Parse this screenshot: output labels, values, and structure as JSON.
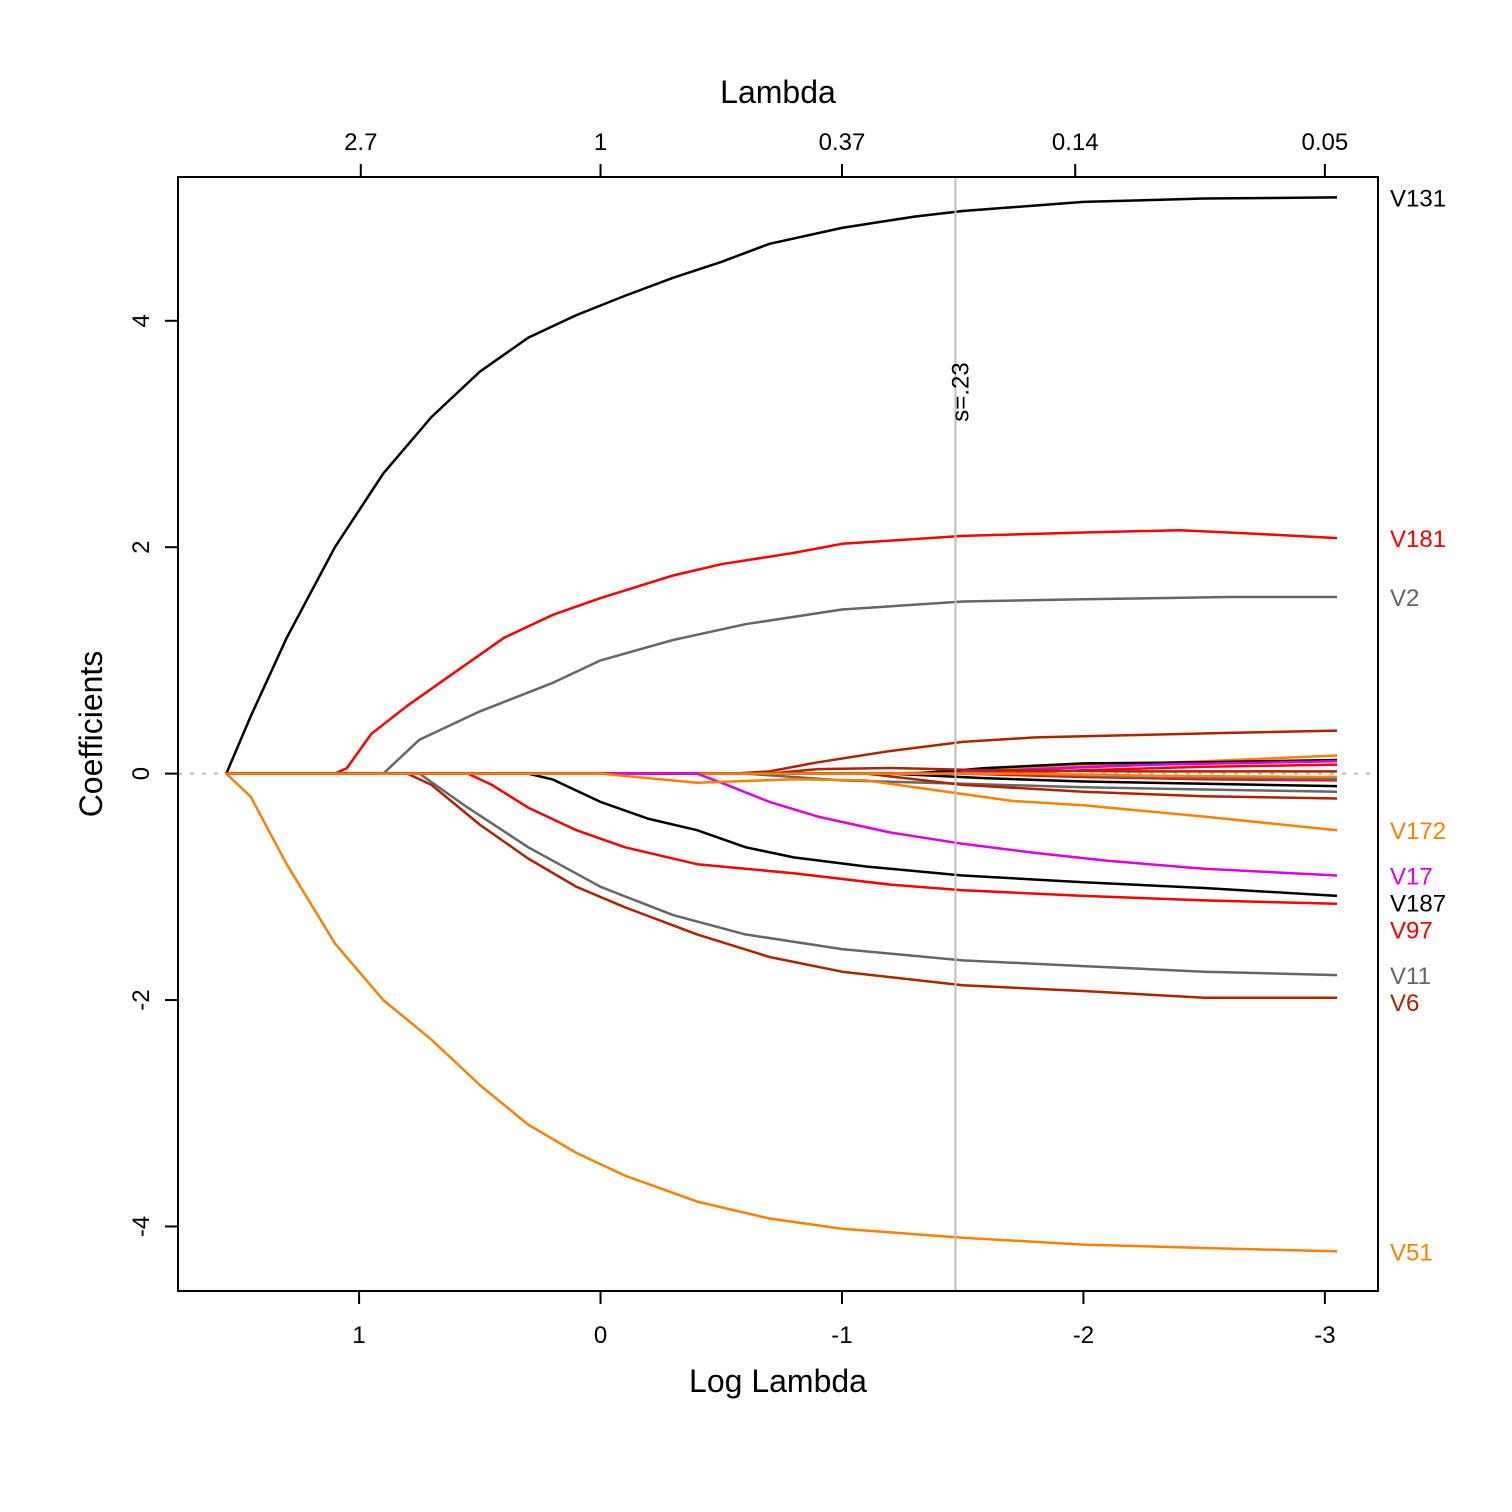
{
  "chart_data": {
    "type": "line",
    "xlabel": "Log Lambda",
    "ylabel": "Coefficients",
    "top_axis_label": "Lambda",
    "xlim": [
      1.75,
      -3.22
    ],
    "ylim": [
      -4.57,
      5.27
    ],
    "x_ticks": [
      1,
      0,
      -1,
      -2,
      -3
    ],
    "x_tick_labels": [
      "1",
      "0",
      "-1",
      "-2",
      "-3"
    ],
    "y_ticks": [
      -4,
      -2,
      0,
      2,
      4
    ],
    "y_tick_labels": [
      "-4",
      "-2",
      "0",
      "2",
      "4"
    ],
    "top_ticks": [
      0.993,
      0.0,
      -1.0,
      -1.966,
      -3.0
    ],
    "top_tick_labels": [
      "2.7",
      "1",
      "0.37",
      "0.14",
      "0.05"
    ],
    "reference_line": {
      "log_lambda": -1.47,
      "label": "s=.23"
    },
    "zero_line": true,
    "grid": false,
    "legend": "labels at right edge",
    "colors": {
      "black": "#000000",
      "red": "#ff0000",
      "gray": "#666666",
      "orange": "#ff7f00",
      "magenta": "#e000e0",
      "darkred": "#b22200",
      "refline": "#bebebe",
      "zero": "#bebebe"
    },
    "series": [
      {
        "name": "V131",
        "color": "#000000",
        "labeled": true,
        "points": [
          [
            1.55,
            0
          ],
          [
            1.45,
            0.5
          ],
          [
            1.3,
            1.2
          ],
          [
            1.1,
            2.0
          ],
          [
            0.9,
            2.65
          ],
          [
            0.7,
            3.15
          ],
          [
            0.5,
            3.55
          ],
          [
            0.3,
            3.85
          ],
          [
            0.1,
            4.05
          ],
          [
            -0.1,
            4.22
          ],
          [
            -0.3,
            4.38
          ],
          [
            -0.5,
            4.52
          ],
          [
            -0.7,
            4.68
          ],
          [
            -1.0,
            4.82
          ],
          [
            -1.3,
            4.92
          ],
          [
            -1.5,
            4.97
          ],
          [
            -2.0,
            5.05
          ],
          [
            -2.5,
            5.08
          ],
          [
            -3.05,
            5.09
          ]
        ]
      },
      {
        "name": "V181",
        "color": "#ff0000",
        "labeled": true,
        "points": [
          [
            1.1,
            0
          ],
          [
            1.05,
            0.05
          ],
          [
            0.95,
            0.35
          ],
          [
            0.8,
            0.6
          ],
          [
            0.6,
            0.9
          ],
          [
            0.4,
            1.2
          ],
          [
            0.2,
            1.4
          ],
          [
            0.0,
            1.55
          ],
          [
            -0.3,
            1.75
          ],
          [
            -0.5,
            1.85
          ],
          [
            -0.8,
            1.95
          ],
          [
            -1.0,
            2.03
          ],
          [
            -1.5,
            2.1
          ],
          [
            -2.0,
            2.13
          ],
          [
            -2.4,
            2.15
          ],
          [
            -2.7,
            2.12
          ],
          [
            -3.05,
            2.08
          ]
        ]
      },
      {
        "name": "V2",
        "color": "#666666",
        "labeled": true,
        "points": [
          [
            0.9,
            0
          ],
          [
            0.75,
            0.3
          ],
          [
            0.5,
            0.55
          ],
          [
            0.2,
            0.8
          ],
          [
            0.0,
            1.0
          ],
          [
            -0.3,
            1.18
          ],
          [
            -0.6,
            1.32
          ],
          [
            -1.0,
            1.45
          ],
          [
            -1.5,
            1.52
          ],
          [
            -2.0,
            1.54
          ],
          [
            -2.6,
            1.56
          ],
          [
            -3.05,
            1.56
          ]
        ]
      },
      {
        "name": "V51",
        "color": "#ff7f00",
        "labeled": true,
        "points": [
          [
            1.55,
            0
          ],
          [
            1.45,
            -0.2
          ],
          [
            1.3,
            -0.8
          ],
          [
            1.1,
            -1.5
          ],
          [
            0.9,
            -2.0
          ],
          [
            0.7,
            -2.35
          ],
          [
            0.5,
            -2.75
          ],
          [
            0.3,
            -3.1
          ],
          [
            0.1,
            -3.35
          ],
          [
            -0.1,
            -3.55
          ],
          [
            -0.4,
            -3.78
          ],
          [
            -0.7,
            -3.93
          ],
          [
            -1.0,
            -4.02
          ],
          [
            -1.5,
            -4.1
          ],
          [
            -2.0,
            -4.16
          ],
          [
            -2.5,
            -4.19
          ],
          [
            -3.05,
            -4.22
          ]
        ]
      },
      {
        "name": "V6",
        "color": "#b22200",
        "labeled": true,
        "points": [
          [
            0.8,
            0
          ],
          [
            0.7,
            -0.1
          ],
          [
            0.5,
            -0.45
          ],
          [
            0.3,
            -0.75
          ],
          [
            0.1,
            -1.0
          ],
          [
            -0.1,
            -1.18
          ],
          [
            -0.4,
            -1.42
          ],
          [
            -0.7,
            -1.62
          ],
          [
            -1.0,
            -1.75
          ],
          [
            -1.5,
            -1.87
          ],
          [
            -2.0,
            -1.92
          ],
          [
            -2.5,
            -1.98
          ],
          [
            -3.05,
            -1.98
          ]
        ]
      },
      {
        "name": "V11",
        "color": "#666666",
        "labeled": true,
        "points": [
          [
            0.75,
            0
          ],
          [
            0.55,
            -0.3
          ],
          [
            0.3,
            -0.65
          ],
          [
            0.0,
            -1.0
          ],
          [
            -0.3,
            -1.25
          ],
          [
            -0.6,
            -1.42
          ],
          [
            -1.0,
            -1.55
          ],
          [
            -1.5,
            -1.65
          ],
          [
            -2.0,
            -1.7
          ],
          [
            -2.5,
            -1.75
          ],
          [
            -3.05,
            -1.78
          ]
        ]
      },
      {
        "name": "V97",
        "color": "#ff0000",
        "labeled": true,
        "points": [
          [
            0.55,
            0
          ],
          [
            0.45,
            -0.1
          ],
          [
            0.3,
            -0.3
          ],
          [
            0.1,
            -0.5
          ],
          [
            -0.1,
            -0.65
          ],
          [
            -0.4,
            -0.8
          ],
          [
            -0.8,
            -0.88
          ],
          [
            -1.2,
            -0.98
          ],
          [
            -1.5,
            -1.03
          ],
          [
            -2.0,
            -1.08
          ],
          [
            -2.5,
            -1.12
          ],
          [
            -3.05,
            -1.15
          ]
        ]
      },
      {
        "name": "V187",
        "color": "#000000",
        "labeled": true,
        "points": [
          [
            0.3,
            0
          ],
          [
            0.2,
            -0.05
          ],
          [
            0.0,
            -0.25
          ],
          [
            -0.2,
            -0.4
          ],
          [
            -0.4,
            -0.5
          ],
          [
            -0.6,
            -0.65
          ],
          [
            -0.8,
            -0.74
          ],
          [
            -1.1,
            -0.82
          ],
          [
            -1.5,
            -0.9
          ],
          [
            -2.0,
            -0.96
          ],
          [
            -2.5,
            -1.01
          ],
          [
            -3.05,
            -1.08
          ]
        ]
      },
      {
        "name": "V17",
        "color": "#e000e0",
        "labeled": true,
        "points": [
          [
            -0.4,
            0
          ],
          [
            -0.5,
            -0.08
          ],
          [
            -0.7,
            -0.25
          ],
          [
            -0.9,
            -0.38
          ],
          [
            -1.2,
            -0.52
          ],
          [
            -1.5,
            -0.62
          ],
          [
            -1.8,
            -0.7
          ],
          [
            -2.1,
            -0.77
          ],
          [
            -2.5,
            -0.84
          ],
          [
            -3.05,
            -0.9
          ]
        ]
      },
      {
        "name": "V172",
        "color": "#ff7f00",
        "labeled": true,
        "points": [
          [
            0.0,
            0
          ],
          [
            -0.4,
            -0.08
          ],
          [
            -0.8,
            -0.05
          ],
          [
            -1.1,
            -0.06
          ],
          [
            -1.4,
            -0.15
          ],
          [
            -1.7,
            -0.24
          ],
          [
            -2.0,
            -0.28
          ],
          [
            -2.5,
            -0.38
          ],
          [
            -3.05,
            -0.5
          ]
        ]
      },
      {
        "name": "",
        "color": "#b22200",
        "labeled": false,
        "points": [
          [
            -0.55,
            0
          ],
          [
            -0.7,
            0.02
          ],
          [
            -0.9,
            0.1
          ],
          [
            -1.2,
            0.2
          ],
          [
            -1.5,
            0.28
          ],
          [
            -1.8,
            0.32
          ],
          [
            -2.2,
            0.34
          ],
          [
            -2.6,
            0.36
          ],
          [
            -3.05,
            0.38
          ]
        ]
      },
      {
        "name": "",
        "color": "#ff7f00",
        "labeled": false,
        "points": [
          [
            -1.2,
            0
          ],
          [
            -1.6,
            0.03
          ],
          [
            -2.0,
            0.07
          ],
          [
            -2.5,
            0.11
          ],
          [
            -3.05,
            0.16
          ]
        ]
      },
      {
        "name": "",
        "color": "#000000",
        "labeled": false,
        "points": [
          [
            -1.3,
            0
          ],
          [
            -1.6,
            0.05
          ],
          [
            -2.0,
            0.09
          ],
          [
            -2.5,
            0.1
          ],
          [
            -3.05,
            0.12
          ]
        ]
      },
      {
        "name": "",
        "color": "#e000e0",
        "labeled": false,
        "points": [
          [
            -1.4,
            0
          ],
          [
            -1.8,
            0.04
          ],
          [
            -2.3,
            0.08
          ],
          [
            -3.05,
            0.11
          ]
        ]
      },
      {
        "name": "",
        "color": "#ff0000",
        "labeled": false,
        "points": [
          [
            -1.6,
            0
          ],
          [
            -2.0,
            0.03
          ],
          [
            -2.5,
            0.06
          ],
          [
            -3.05,
            0.08
          ]
        ]
      },
      {
        "name": "",
        "color": "#b22200",
        "labeled": false,
        "points": [
          [
            -0.7,
            0
          ],
          [
            -0.9,
            0.04
          ],
          [
            -1.2,
            0.05
          ],
          [
            -1.6,
            0.03
          ],
          [
            -2.2,
            0.02
          ],
          [
            -3.05,
            0.02
          ]
        ]
      },
      {
        "name": "",
        "color": "#666666",
        "labeled": false,
        "points": [
          [
            -0.6,
            0
          ],
          [
            -1.0,
            -0.06
          ],
          [
            -1.5,
            -0.09
          ],
          [
            -2.0,
            -0.12
          ],
          [
            -2.5,
            -0.14
          ],
          [
            -3.05,
            -0.16
          ]
        ]
      },
      {
        "name": "",
        "color": "#b22200",
        "labeled": false,
        "points": [
          [
            -1.1,
            0
          ],
          [
            -1.5,
            -0.1
          ],
          [
            -2.0,
            -0.16
          ],
          [
            -2.5,
            -0.2
          ],
          [
            -3.05,
            -0.22
          ]
        ]
      },
      {
        "name": "",
        "color": "#000000",
        "labeled": false,
        "points": [
          [
            -1.2,
            0
          ],
          [
            -1.6,
            -0.04
          ],
          [
            -2.0,
            -0.07
          ],
          [
            -2.5,
            -0.09
          ],
          [
            -3.05,
            -0.11
          ]
        ]
      },
      {
        "name": "",
        "color": "#ff0000",
        "labeled": false,
        "points": [
          [
            -1.5,
            0
          ],
          [
            -2.0,
            -0.03
          ],
          [
            -2.5,
            -0.05
          ],
          [
            -3.05,
            -0.06
          ]
        ]
      },
      {
        "name": "",
        "color": "#666666",
        "labeled": false,
        "points": [
          [
            -1.7,
            0
          ],
          [
            -2.2,
            -0.03
          ],
          [
            -3.05,
            -0.05
          ]
        ]
      },
      {
        "name": "",
        "color": "#ff7f00",
        "labeled": false,
        "points": [
          [
            -1.8,
            0
          ],
          [
            -2.3,
            -0.02
          ],
          [
            -3.05,
            -0.03
          ]
        ]
      }
    ]
  }
}
